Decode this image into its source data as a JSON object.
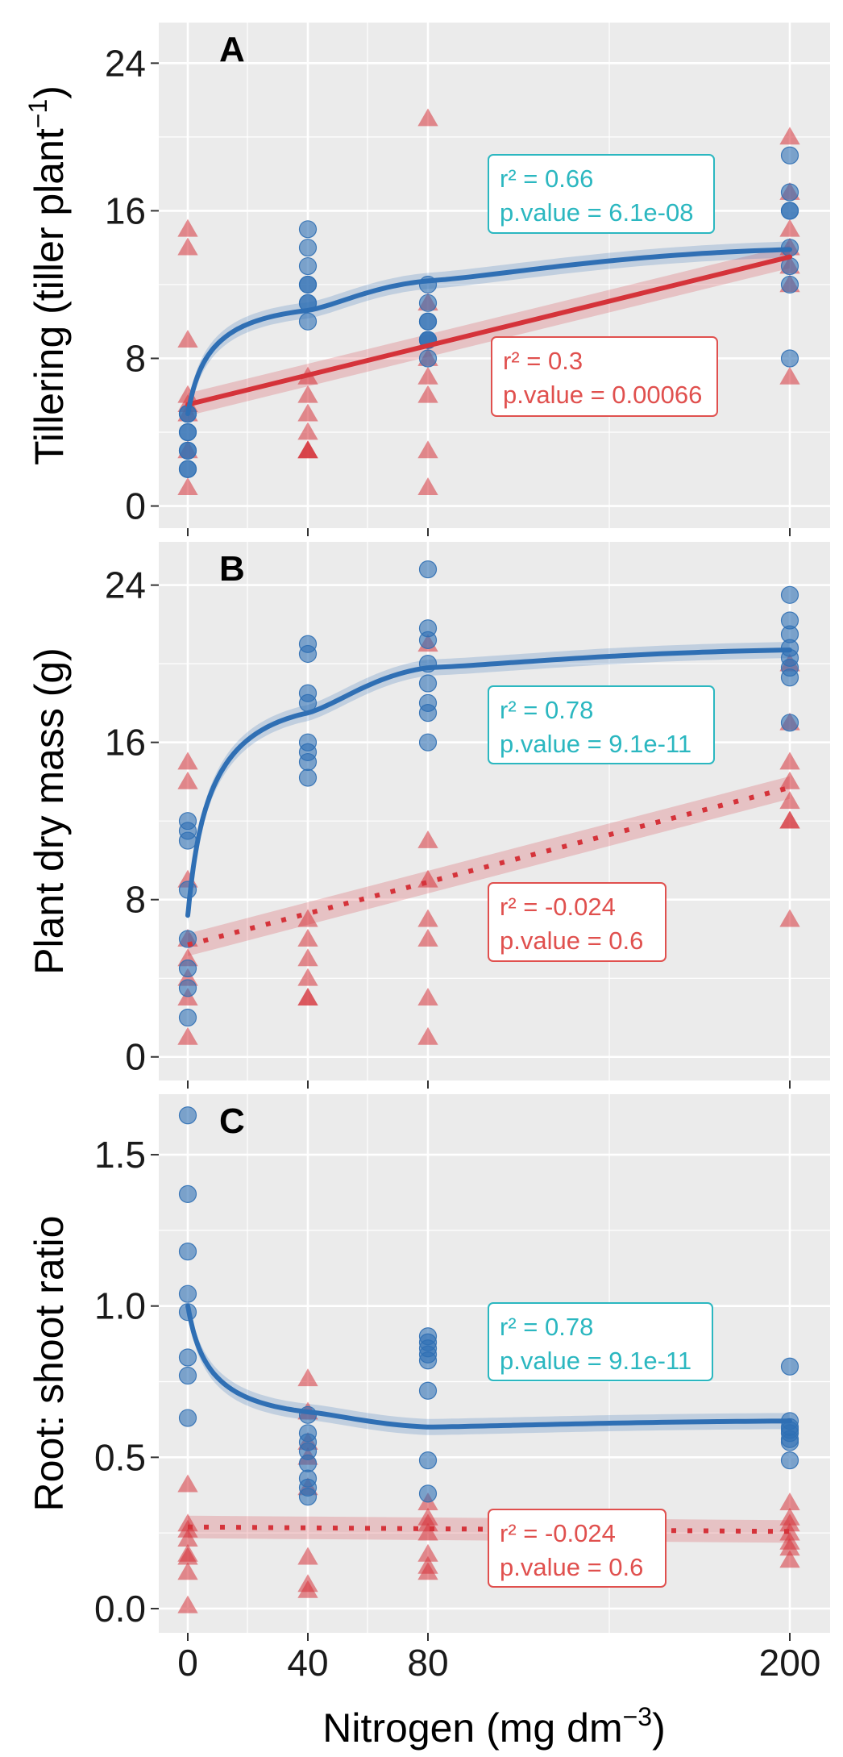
{
  "chart_data": {
    "type": "scatter",
    "x_axis": {
      "title": "Nitrogen (mg dm",
      "title_sup": "−3",
      "title_close": ")",
      "categories": [
        0,
        40,
        80,
        200
      ],
      "tick_labels": [
        "0",
        "40",
        "80",
        "200"
      ]
    },
    "colors": {
      "blue": "#2f6fb4",
      "red": "#d5333a",
      "cyan_text": "#2bb7c0",
      "red_text": "#e0504e",
      "panel_bg": "#ebebeb"
    },
    "panels": [
      {
        "letter": "A",
        "ylabel": "Tillering (tiller plant",
        "ylabel_sup": "−1",
        "ylabel_close": ")",
        "ylim": [
          -1.2,
          26.2
        ],
        "yticks": [
          0,
          8,
          16,
          24
        ],
        "ytick_labels": [
          "0",
          "8",
          "16",
          "24"
        ],
        "blue_points": [
          {
            "x": 0,
            "values": [
              2,
              3,
              4,
              5,
              2,
              3,
              4,
              5
            ]
          },
          {
            "x": 40,
            "values": [
              15,
              14,
              13,
              12,
              12,
              11,
              11,
              10
            ]
          },
          {
            "x": 80,
            "values": [
              12,
              11,
              10,
              10,
              9,
              9,
              8,
              9
            ]
          },
          {
            "x": 200,
            "values": [
              19,
              17,
              16,
              16,
              14,
              13,
              12,
              8
            ]
          }
        ],
        "red_points": [
          {
            "x": 0,
            "values": [
              15,
              14,
              9,
              6,
              5.5,
              5,
              3,
              1
            ]
          },
          {
            "x": 40,
            "values": [
              7,
              6,
              5,
              4,
              3,
              3,
              3
            ]
          },
          {
            "x": 80,
            "values": [
              21,
              11,
              8,
              7,
              6,
              3,
              1
            ]
          },
          {
            "x": 200,
            "values": [
              20,
              17,
              15,
              14,
              13,
              12,
              7
            ]
          }
        ],
        "blue_fit": {
          "type": "log",
          "line": "solid",
          "values": [
            5.0,
            10.6,
            12.2,
            13.9
          ]
        },
        "red_fit": {
          "type": "linear",
          "line": "solid",
          "values": [
            5.5,
            7.1,
            8.7,
            13.5
          ]
        },
        "blue_stats": {
          "r2": "r² =  0.66",
          "p": "p.value = 6.1e-08"
        },
        "red_stats": {
          "r2": "r² =  0.3",
          "p": "p.value = 0.00066"
        }
      },
      {
        "letter": "B",
        "ylabel": "Plant dry mass (g)",
        "ylim": [
          -1.2,
          26.2
        ],
        "yticks": [
          0,
          8,
          16,
          24
        ],
        "ytick_labels": [
          "0",
          "8",
          "16",
          "24"
        ],
        "blue_points": [
          {
            "x": 0,
            "values": [
              12,
              11.5,
              11,
              8.5,
              6,
              4.5,
              3.5,
              2
            ]
          },
          {
            "x": 40,
            "values": [
              21,
              20.5,
              18.5,
              18,
              16,
              15.5,
              15,
              14.2
            ]
          },
          {
            "x": 80,
            "values": [
              24.8,
              21.8,
              21.2,
              20,
              19,
              18,
              17.5,
              16
            ]
          },
          {
            "x": 200,
            "values": [
              23.5,
              22.2,
              21.5,
              20.8,
              20.3,
              19.8,
              19.3,
              17
            ]
          }
        ],
        "red_points": [
          {
            "x": 0,
            "values": [
              15,
              14,
              9,
              6,
              5,
              4,
              3,
              1
            ]
          },
          {
            "x": 40,
            "values": [
              7,
              6,
              5,
              4,
              3,
              3
            ]
          },
          {
            "x": 80,
            "values": [
              21,
              11,
              9,
              7,
              6,
              3,
              1
            ]
          },
          {
            "x": 200,
            "values": [
              20,
              17,
              15,
              14,
              13,
              12,
              12,
              7
            ]
          }
        ],
        "blue_fit": {
          "type": "log",
          "line": "solid",
          "values": [
            7.2,
            17.5,
            19.8,
            20.7
          ]
        },
        "red_fit": {
          "type": "linear",
          "line": "dotted",
          "values": [
            5.7,
            7.4,
            9.0,
            13.7
          ]
        },
        "blue_stats": {
          "r2": "r² =  0.78",
          "p": "p.value = 9.1e-11"
        },
        "red_stats": {
          "r2": "r² =  -0.024",
          "p": "p.value = 0.6"
        }
      },
      {
        "letter": "C",
        "ylabel": "Root: shoot ratio",
        "ylim": [
          -0.08,
          1.7
        ],
        "yticks": [
          0.0,
          0.5,
          1.0,
          1.5
        ],
        "ytick_labels": [
          "0.0",
          "0.5",
          "1.0",
          "1.5"
        ],
        "blue_points": [
          {
            "x": 0,
            "values": [
              1.63,
              1.37,
              1.18,
              1.04,
              0.98,
              0.83,
              0.77,
              0.63
            ]
          },
          {
            "x": 40,
            "values": [
              0.64,
              0.58,
              0.55,
              0.52,
              0.48,
              0.43,
              0.4,
              0.37
            ]
          },
          {
            "x": 80,
            "values": [
              0.9,
              0.88,
              0.86,
              0.84,
              0.82,
              0.72,
              0.49,
              0.38
            ]
          },
          {
            "x": 200,
            "values": [
              0.8,
              0.62,
              0.6,
              0.59,
              0.58,
              0.56,
              0.55,
              0.49
            ]
          }
        ],
        "red_points": [
          {
            "x": 0,
            "values": [
              0.41,
              0.28,
              0.26,
              0.23,
              0.18,
              0.17,
              0.12,
              0.01
            ]
          },
          {
            "x": 40,
            "values": [
              0.76,
              0.65,
              0.55,
              0.5,
              0.4,
              0.17,
              0.08,
              0.06
            ]
          },
          {
            "x": 80,
            "values": [
              0.35,
              0.3,
              0.28,
              0.25,
              0.18,
              0.14,
              0.12
            ]
          },
          {
            "x": 200,
            "values": [
              0.35,
              0.3,
              0.28,
              0.25,
              0.22,
              0.2,
              0.16
            ]
          }
        ],
        "blue_fit": {
          "type": "log",
          "line": "solid",
          "values": [
            1.0,
            0.65,
            0.6,
            0.62
          ]
        },
        "red_fit": {
          "type": "linear",
          "line": "dotted",
          "values": [
            0.27,
            0.265,
            0.26,
            0.255
          ]
        },
        "blue_stats": {
          "r2": "r² =  0.78",
          "p": "p.value = 9.1e-11"
        },
        "red_stats": {
          "r2": "r² =  -0.024",
          "p": "p.value = 0.6"
        }
      }
    ]
  }
}
